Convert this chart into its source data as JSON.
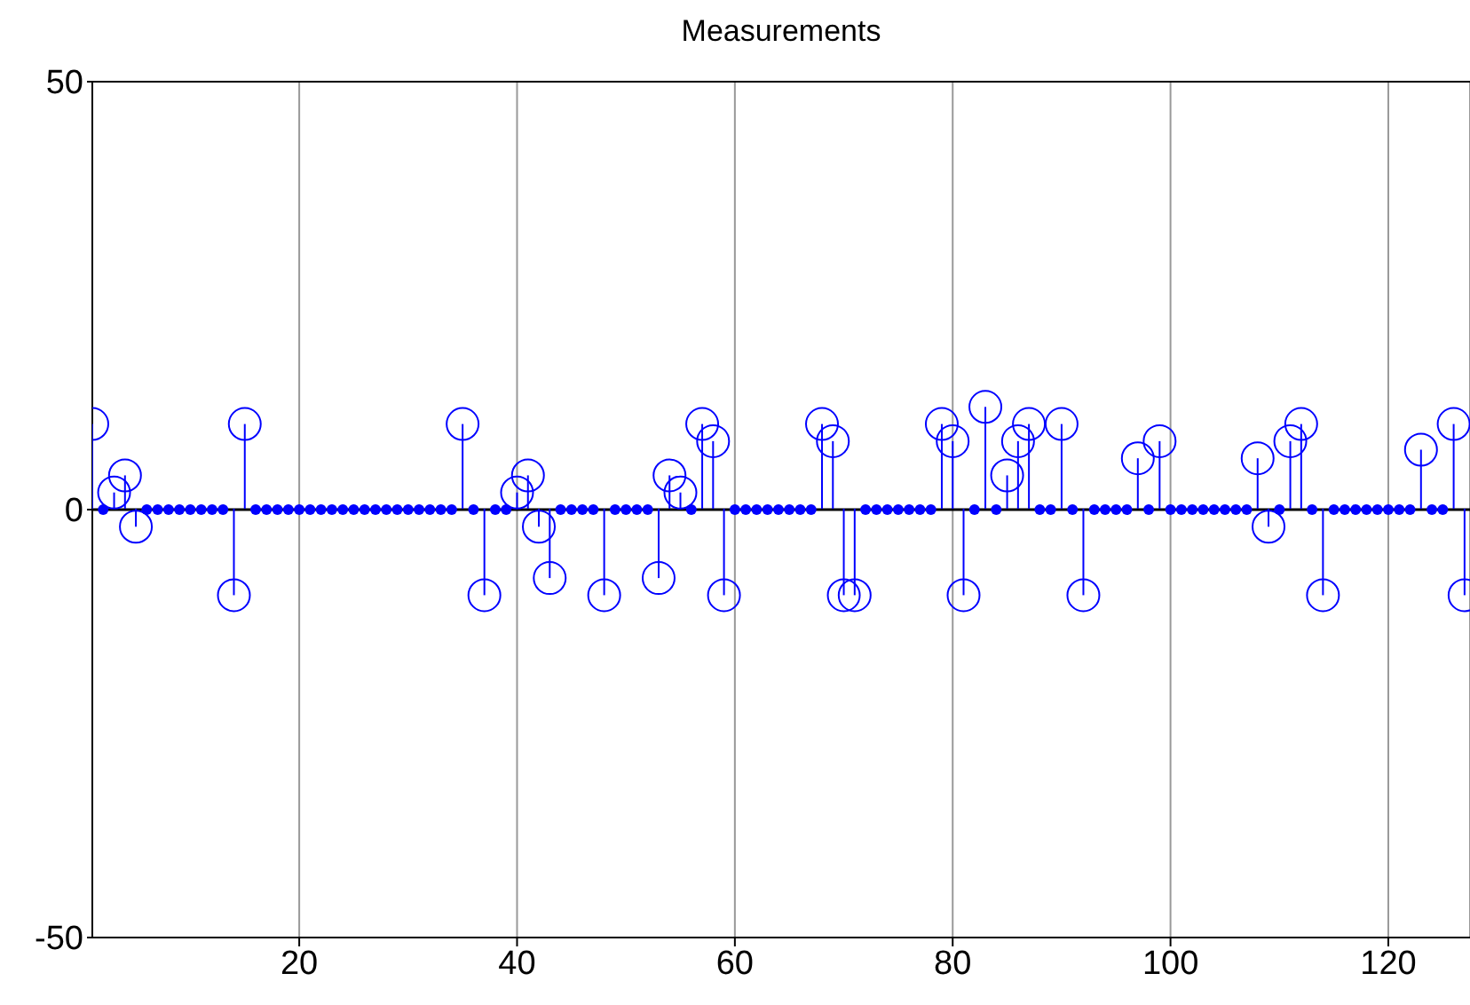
{
  "chart_data": {
    "type": "lollipop",
    "title": "Measurements",
    "x": [
      1,
      2,
      3,
      4,
      5,
      6,
      7,
      8,
      9,
      10,
      11,
      12,
      13,
      14,
      15,
      16,
      17,
      18,
      19,
      20,
      21,
      22,
      23,
      24,
      25,
      26,
      27,
      28,
      29,
      30,
      31,
      32,
      33,
      34,
      35,
      36,
      37,
      38,
      39,
      40,
      41,
      42,
      43,
      44,
      45,
      46,
      47,
      48,
      49,
      50,
      51,
      52,
      53,
      54,
      55,
      56,
      57,
      58,
      59,
      60,
      61,
      62,
      63,
      64,
      65,
      66,
      67,
      68,
      69,
      70,
      71,
      72,
      73,
      74,
      75,
      76,
      77,
      78,
      79,
      80,
      81,
      82,
      83,
      84,
      85,
      86,
      87,
      88,
      89,
      90,
      91,
      92,
      93,
      94,
      95,
      96,
      97,
      98,
      99,
      100,
      101,
      102,
      103,
      104,
      105,
      106,
      107,
      108,
      109,
      110,
      111,
      112,
      113,
      114,
      115,
      116,
      117,
      118,
      119,
      120,
      121,
      122,
      123,
      124,
      125,
      126,
      127
    ],
    "series": [
      {
        "color": "#0000ff",
        "values": [
          10,
          null,
          2,
          4,
          -2,
          null,
          null,
          null,
          null,
          null,
          null,
          null,
          null,
          -10,
          10,
          null,
          null,
          null,
          null,
          null,
          null,
          null,
          null,
          null,
          null,
          null,
          null,
          null,
          null,
          null,
          null,
          null,
          null,
          null,
          10,
          null,
          -10,
          null,
          null,
          2,
          4,
          -2,
          -8,
          null,
          null,
          null,
          null,
          -10,
          null,
          null,
          null,
          null,
          -8,
          4,
          2,
          null,
          10,
          8,
          -10,
          null,
          null,
          null,
          null,
          null,
          null,
          null,
          null,
          10,
          8,
          -10,
          -10,
          null,
          null,
          null,
          null,
          null,
          null,
          null,
          10,
          8,
          -10,
          null,
          12,
          null,
          4,
          8,
          10,
          null,
          null,
          10,
          null,
          -10,
          null,
          null,
          null,
          null,
          6,
          null,
          8,
          null,
          null,
          null,
          null,
          null,
          null,
          null,
          null,
          6,
          -2,
          null,
          8,
          10,
          null,
          -10,
          null,
          null,
          null,
          null,
          null,
          null,
          null,
          null,
          7,
          null,
          null,
          10,
          -10
        ]
      },
      {
        "type": "scatter",
        "color": "#0000ff",
        "values": [
          null,
          0,
          null,
          null,
          null,
          0,
          0,
          0,
          0,
          0,
          0,
          0,
          0,
          null,
          null,
          0,
          0,
          0,
          0,
          0,
          0,
          0,
          0,
          0,
          0,
          0,
          0,
          0,
          0,
          0,
          0,
          0,
          0,
          0,
          null,
          0,
          null,
          0,
          0,
          null,
          null,
          null,
          null,
          0,
          0,
          0,
          0,
          null,
          0,
          0,
          0,
          0,
          null,
          null,
          null,
          0,
          null,
          null,
          null,
          0,
          0,
          0,
          0,
          0,
          0,
          0,
          0,
          null,
          null,
          null,
          null,
          0,
          0,
          0,
          0,
          0,
          0,
          0,
          null,
          null,
          null,
          0,
          null,
          0,
          null,
          null,
          null,
          0,
          0,
          null,
          0,
          null,
          0,
          0,
          0,
          0,
          null,
          0,
          null,
          0,
          0,
          0,
          0,
          0,
          0,
          0,
          0,
          null,
          null,
          0,
          null,
          null,
          0,
          null,
          0,
          0,
          0,
          0,
          0,
          0,
          0,
          0,
          null,
          0,
          0,
          null,
          null
        ]
      }
    ],
    "xlim": [
      1,
      127.5
    ],
    "xticks": [
      20,
      40,
      60,
      80,
      100,
      120
    ],
    "ylim": [
      -50,
      50
    ],
    "yticks": [
      -50,
      0,
      50
    ],
    "grid": "x",
    "marker": "circle"
  }
}
